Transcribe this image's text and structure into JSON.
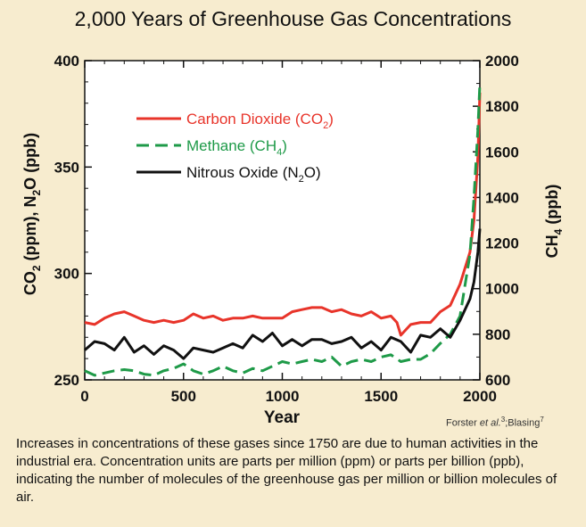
{
  "title": "2,000 Years of Greenhouse Gas Concentrations",
  "credit": {
    "author": "Forster",
    "etal": "et al.",
    "ref1": "3",
    "sep": ";Blasing",
    "ref2": "7"
  },
  "caption": "Increases in concentrations of these gases since 1750 are due to human activities in the industrial era. Concentration units are parts per million (ppm) or parts per billion (ppb), indicating the number of molecules of the greenhouse gas per million or billion molecules of air.",
  "chart_data": {
    "type": "line",
    "xlabel": "Year",
    "ylabel_left": "CO2 (ppm), N2O (ppb)",
    "ylabel_right": "CH4 (ppb)",
    "xlim": [
      0,
      2000
    ],
    "ylim_left": [
      250,
      400
    ],
    "ylim_right": [
      600,
      2000
    ],
    "x_ticks": [
      0,
      500,
      1000,
      1500,
      2000
    ],
    "y_left_ticks": [
      250,
      300,
      350,
      400
    ],
    "y_right_ticks": [
      600,
      800,
      1000,
      1200,
      1400,
      1600,
      1800,
      2000
    ],
    "legend_position": "upper-left",
    "series": [
      {
        "name": "Carbon Dioxide (CO2)",
        "label_main": "Carbon Dioxide (CO",
        "label_sub": "2",
        "label_end": ")",
        "axis": "left",
        "color": "#e8342a",
        "style": "solid",
        "x": [
          0,
          50,
          100,
          150,
          200,
          250,
          300,
          350,
          400,
          450,
          500,
          550,
          600,
          650,
          700,
          750,
          800,
          850,
          900,
          950,
          1000,
          1050,
          1100,
          1150,
          1200,
          1250,
          1300,
          1350,
          1400,
          1450,
          1500,
          1550,
          1580,
          1600,
          1650,
          1700,
          1750,
          1800,
          1850,
          1900,
          1950,
          1970,
          1990,
          2000
        ],
        "values": [
          277,
          276,
          279,
          281,
          282,
          280,
          278,
          277,
          278,
          277,
          278,
          281,
          279,
          280,
          278,
          279,
          279,
          280,
          279,
          279,
          279,
          282,
          283,
          284,
          284,
          282,
          283,
          281,
          280,
          282,
          279,
          280,
          277,
          271,
          276,
          277,
          277,
          282,
          285,
          295,
          310,
          325,
          355,
          385
        ]
      },
      {
        "name": "Methane (CH4)",
        "label_main": "Methane (CH",
        "label_sub": "4",
        "label_end": ")",
        "axis": "right",
        "color": "#1e9a48",
        "style": "dashed",
        "x": [
          0,
          50,
          100,
          150,
          200,
          250,
          300,
          350,
          400,
          450,
          500,
          550,
          600,
          650,
          700,
          750,
          800,
          850,
          900,
          950,
          1000,
          1050,
          1100,
          1150,
          1200,
          1250,
          1300,
          1350,
          1400,
          1450,
          1500,
          1550,
          1600,
          1650,
          1700,
          1750,
          1800,
          1850,
          1900,
          1950,
          1970,
          1990,
          2000
        ],
        "values": [
          640,
          620,
          630,
          640,
          645,
          640,
          625,
          620,
          640,
          650,
          670,
          640,
          625,
          640,
          660,
          640,
          630,
          650,
          640,
          660,
          680,
          670,
          680,
          690,
          680,
          700,
          660,
          680,
          690,
          680,
          700,
          710,
          680,
          690,
          690,
          715,
          760,
          800,
          880,
          1150,
          1400,
          1700,
          1900
        ]
      },
      {
        "name": "Nitrous Oxide (N2O)",
        "label_main": "Nitrous Oxide (N",
        "label_sub": "2",
        "label_end": "O)",
        "axis": "left",
        "color": "#111111",
        "style": "solid",
        "x": [
          0,
          50,
          100,
          150,
          200,
          250,
          300,
          350,
          400,
          450,
          500,
          550,
          600,
          650,
          700,
          750,
          800,
          850,
          900,
          950,
          1000,
          1050,
          1100,
          1150,
          1200,
          1250,
          1300,
          1350,
          1400,
          1450,
          1500,
          1550,
          1600,
          1650,
          1700,
          1750,
          1800,
          1850,
          1900,
          1950,
          1970,
          1990,
          2000
        ],
        "values": [
          264,
          268,
          267,
          264,
          270,
          263,
          266,
          262,
          266,
          264,
          260,
          265,
          264,
          263,
          265,
          267,
          265,
          271,
          268,
          272,
          266,
          269,
          266,
          269,
          269,
          267,
          268,
          270,
          265,
          268,
          264,
          270,
          268,
          263,
          271,
          270,
          274,
          270,
          278,
          288,
          296,
          310,
          321
        ]
      }
    ]
  }
}
